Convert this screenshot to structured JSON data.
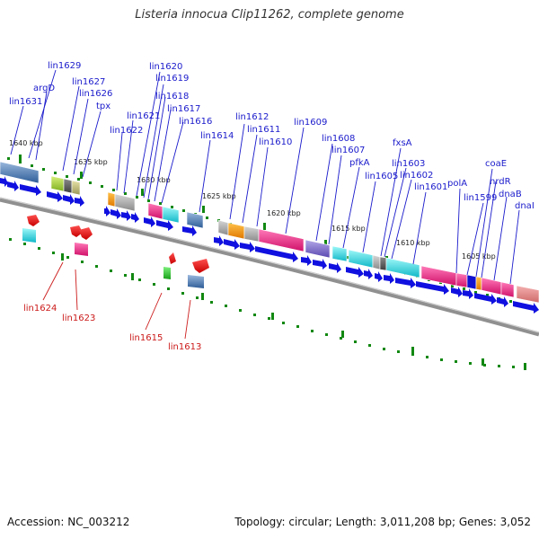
{
  "title": "Listeria innocua Clip11262, complete genome",
  "accession": "Accession: NC_003212",
  "summary": "Topology: circular; Length: 3,011,208 bp; Genes: 3,052",
  "kbp_labels": [
    "1640 kbp",
    "1635 kbp",
    "1630 kbp",
    "1625 kbp",
    "1620 kbp",
    "1615 kbp",
    "1610 kbp",
    "1605 kbp"
  ],
  "genes_forward_labels": [
    "lin1631",
    "lin1629",
    "argD",
    "lin1627",
    "lin1626",
    "tpx",
    "lin1622",
    "lin1621",
    "lin1620",
    "lin1619",
    "lin1618",
    "lin1617",
    "lin1616",
    "lin1614",
    "lin1612",
    "lin1611",
    "lin1610",
    "lin1609",
    "lin1608",
    "lin1607",
    "pfkA",
    "fxsA",
    "lin1605",
    "lin1603",
    "lin1602",
    "lin1601",
    "polA",
    "lin1599",
    "coaE",
    "nrdR",
    "dnaB",
    "dnaI"
  ],
  "genes_reverse_labels": [
    "lin1624",
    "lin1623",
    "lin1615",
    "lin1613"
  ],
  "colors": {
    "forward_gene": "#1010e0",
    "reverse_gene": "#ee1010",
    "backbone": "#888888",
    "tick": "#118811",
    "label_forward": "#1a1acc",
    "label_reverse": "#cc1a1a"
  }
}
